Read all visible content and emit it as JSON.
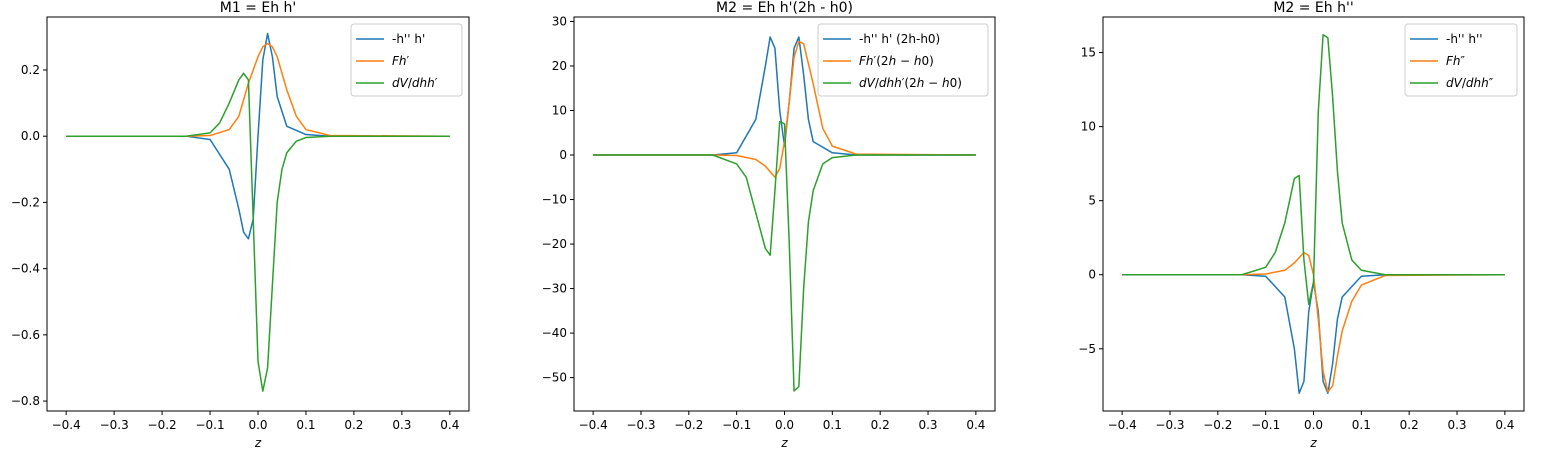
{
  "colors": {
    "c0": "#1f77b4",
    "c1": "#ff7f0e",
    "c2": "#2ca02c"
  },
  "chart_data": [
    {
      "type": "line",
      "title": "M1 = Eh h'",
      "xlabel": "z",
      "ylabel": "",
      "xlim": [
        -0.44,
        0.44
      ],
      "ylim": [
        -0.83,
        0.36
      ],
      "xticks": [
        -0.4,
        -0.3,
        -0.2,
        -0.1,
        0.0,
        0.1,
        0.2,
        0.3,
        0.4
      ],
      "yticks": [
        -0.8,
        -0.6,
        -0.4,
        -0.2,
        0.0,
        0.2
      ],
      "legend_placement": "upper-right",
      "grid": false,
      "series": [
        {
          "name": "-h'' h'",
          "x": [
            -0.4,
            -0.15,
            -0.1,
            -0.06,
            -0.04,
            -0.03,
            -0.02,
            -0.01,
            0.0,
            0.01,
            0.02,
            0.03,
            0.04,
            0.06,
            0.1,
            0.15,
            0.4
          ],
          "y": [
            0,
            0,
            -0.01,
            -0.1,
            -0.22,
            -0.29,
            -0.31,
            -0.25,
            0.0,
            0.23,
            0.31,
            0.24,
            0.12,
            0.03,
            0.005,
            0,
            0
          ]
        },
        {
          "name": "Fh'",
          "x": [
            -0.4,
            -0.15,
            -0.1,
            -0.06,
            -0.04,
            -0.02,
            0.0,
            0.01,
            0.02,
            0.03,
            0.04,
            0.06,
            0.08,
            0.1,
            0.15,
            0.4
          ],
          "y": [
            0,
            0,
            0.002,
            0.02,
            0.06,
            0.16,
            0.24,
            0.27,
            0.28,
            0.27,
            0.24,
            0.14,
            0.06,
            0.02,
            0.002,
            0
          ]
        },
        {
          "name": "dV/dhh'",
          "x": [
            -0.4,
            -0.15,
            -0.1,
            -0.08,
            -0.06,
            -0.04,
            -0.03,
            -0.02,
            -0.01,
            0.0,
            0.01,
            0.02,
            0.03,
            0.04,
            0.05,
            0.06,
            0.08,
            0.1,
            0.15,
            0.4
          ],
          "y": [
            0,
            0,
            0.01,
            0.04,
            0.1,
            0.17,
            0.19,
            0.17,
            -0.25,
            -0.68,
            -0.77,
            -0.7,
            -0.45,
            -0.2,
            -0.1,
            -0.05,
            -0.015,
            -0.004,
            0,
            0
          ]
        }
      ]
    },
    {
      "type": "line",
      "title": "M2 = Eh h'(2h - h0)",
      "xlabel": "z",
      "ylabel": "",
      "xlim": [
        -0.44,
        0.44
      ],
      "ylim": [
        -57.5,
        31
      ],
      "xticks": [
        -0.4,
        -0.3,
        -0.2,
        -0.1,
        0.0,
        0.1,
        0.2,
        0.3,
        0.4
      ],
      "yticks": [
        -50,
        -40,
        -30,
        -20,
        -10,
        0,
        10,
        20,
        30
      ],
      "legend_placement": "upper-right",
      "grid": false,
      "series": [
        {
          "name": "-h'' h' (2h-h0)",
          "x": [
            -0.4,
            -0.15,
            -0.1,
            -0.06,
            -0.04,
            -0.03,
            -0.02,
            -0.01,
            0.0,
            0.01,
            0.02,
            0.03,
            0.04,
            0.05,
            0.06,
            0.1,
            0.15,
            0.4
          ],
          "y": [
            0,
            0,
            0.5,
            8,
            20,
            26.5,
            24,
            10,
            2,
            12,
            24,
            26.5,
            18,
            8,
            3,
            0.5,
            0,
            0
          ]
        },
        {
          "name": "Fh'(2h - h0)",
          "x": [
            -0.4,
            -0.15,
            -0.1,
            -0.06,
            -0.04,
            -0.02,
            -0.01,
            0.0,
            0.01,
            0.02,
            0.03,
            0.04,
            0.06,
            0.08,
            0.1,
            0.15,
            0.4
          ],
          "y": [
            0,
            0,
            -0.1,
            -1,
            -2.5,
            -5,
            -3,
            3,
            12,
            22,
            25.5,
            25,
            16,
            6,
            2,
            0.2,
            0
          ]
        },
        {
          "name": "dV/dhh'(2h - h0)",
          "x": [
            -0.4,
            -0.15,
            -0.1,
            -0.08,
            -0.06,
            -0.04,
            -0.03,
            -0.02,
            -0.01,
            0.0,
            0.01,
            0.02,
            0.03,
            0.04,
            0.05,
            0.06,
            0.08,
            0.1,
            0.15,
            0.4
          ],
          "y": [
            0,
            0,
            -2,
            -5,
            -13,
            -21,
            -22.5,
            -8,
            7.5,
            7,
            -20,
            -53,
            -52,
            -30,
            -15,
            -8,
            -2,
            -0.6,
            0,
            0
          ]
        }
      ]
    },
    {
      "type": "line",
      "title": "M2 = Eh h''",
      "xlabel": "z",
      "ylabel": "",
      "xlim": [
        -0.44,
        0.44
      ],
      "ylim": [
        -9.2,
        17.4
      ],
      "xticks": [
        -0.4,
        -0.3,
        -0.2,
        -0.1,
        0.0,
        0.1,
        0.2,
        0.3,
        0.4
      ],
      "yticks": [
        -5,
        0,
        5,
        10,
        15
      ],
      "legend_placement": "upper-right",
      "grid": false,
      "series": [
        {
          "name": "-h'' h''",
          "x": [
            -0.4,
            -0.15,
            -0.1,
            -0.06,
            -0.04,
            -0.03,
            -0.02,
            -0.01,
            0.0,
            0.01,
            0.02,
            0.03,
            0.04,
            0.05,
            0.06,
            0.1,
            0.15,
            0.4
          ],
          "y": [
            0,
            0,
            -0.1,
            -1.5,
            -5,
            -8,
            -7.2,
            -2.5,
            -0.5,
            -2.5,
            -7.2,
            -8,
            -6,
            -3,
            -1.5,
            -0.1,
            0,
            0
          ]
        },
        {
          "name": "Fh''",
          "x": [
            -0.4,
            -0.15,
            -0.1,
            -0.06,
            -0.04,
            -0.02,
            -0.01,
            0.0,
            0.01,
            0.02,
            0.03,
            0.04,
            0.05,
            0.06,
            0.08,
            0.1,
            0.15,
            0.4
          ],
          "y": [
            0,
            0,
            0.05,
            0.3,
            0.8,
            1.5,
            1.3,
            0,
            -3,
            -6.5,
            -7.9,
            -7.5,
            -5.5,
            -3.8,
            -1.8,
            -0.7,
            -0.05,
            0
          ]
        },
        {
          "name": "dV/dhh''",
          "x": [
            -0.4,
            -0.15,
            -0.1,
            -0.08,
            -0.06,
            -0.05,
            -0.04,
            -0.03,
            -0.02,
            -0.01,
            0.0,
            0.01,
            0.02,
            0.03,
            0.04,
            0.05,
            0.06,
            0.08,
            0.1,
            0.15,
            0.4
          ],
          "y": [
            0,
            0,
            0.5,
            1.5,
            3.5,
            5,
            6.5,
            6.7,
            1,
            -2,
            -0.5,
            11,
            16.2,
            16,
            12,
            7,
            3.5,
            1,
            0.3,
            0,
            0
          ]
        }
      ]
    }
  ]
}
